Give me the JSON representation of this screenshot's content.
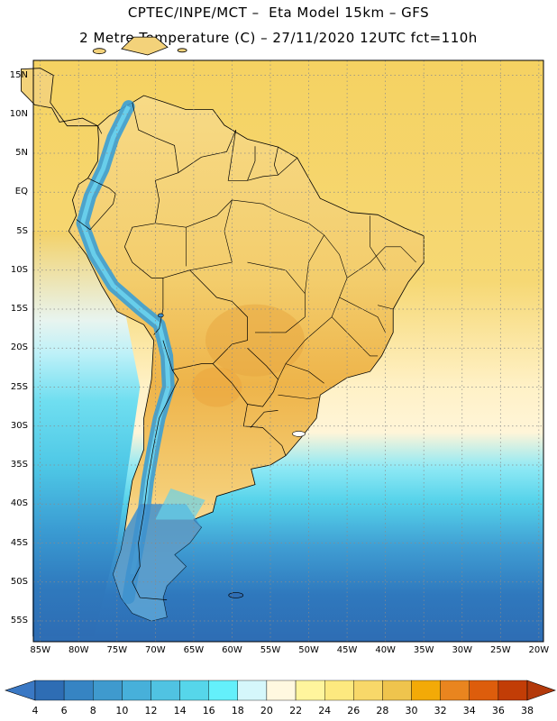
{
  "header": {
    "line1": "CPTEC/INPE/MCT –  Eta Model 15km – GFS",
    "line2": "2 Metre Temperature (C) – 27/11/2020 12UTC fct=110h"
  },
  "map": {
    "lat_labels": [
      "15N",
      "10N",
      "5N",
      "EQ",
      "5S",
      "10S",
      "15S",
      "20S",
      "25S",
      "30S",
      "35S",
      "40S",
      "45S",
      "50S",
      "55S"
    ],
    "lon_labels": [
      "85W",
      "80W",
      "75W",
      "70W",
      "65W",
      "60W",
      "55W",
      "50W",
      "45W",
      "40W",
      "35W",
      "30W",
      "25W",
      "20W"
    ],
    "colors": {
      "ocean_warm": "#f5d262",
      "ocean_mid": "#fff1b4",
      "ocean_cool": "#8fe9f5",
      "ocean_cold": "#2f86c4",
      "land": "#f1c25e",
      "andes": "#3a9fd5",
      "border": "#000000",
      "grid": "#8a8a8a"
    }
  },
  "colorbar": {
    "labels": [
      "4",
      "6",
      "8",
      "10",
      "12",
      "14",
      "16",
      "18",
      "20",
      "22",
      "24",
      "26",
      "28",
      "30",
      "32",
      "34",
      "36",
      "38"
    ],
    "colors": [
      "#2e6db4",
      "#3684c3",
      "#3f9ace",
      "#47b0da",
      "#50c3e2",
      "#56d6ea",
      "#64f0fb",
      "#d5f7fb",
      "#fff8e0",
      "#fff59d",
      "#fde97f",
      "#f8d869",
      "#efc44d",
      "#f3aa07",
      "#e9851f",
      "#dd5d0c",
      "#c23d06"
    ],
    "under_color": "#3a78c4",
    "over_color": "#b3390b"
  }
}
